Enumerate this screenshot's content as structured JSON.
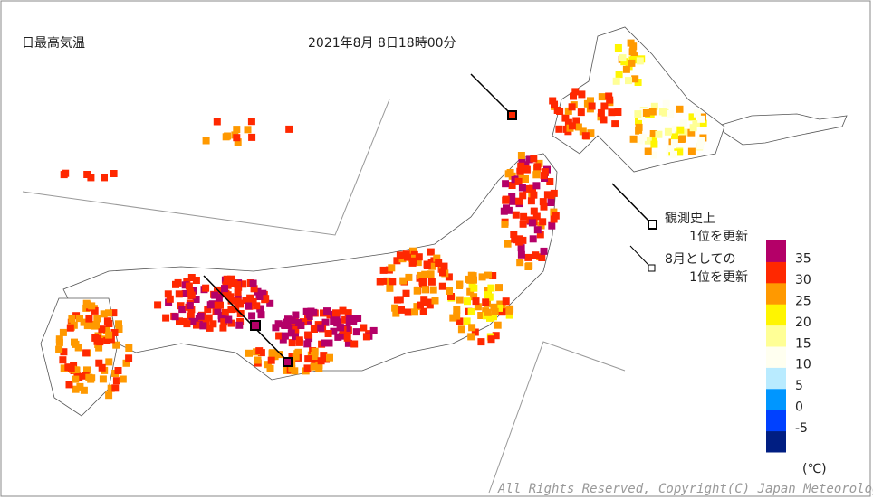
{
  "header": {
    "title": "日最高気温",
    "datetime": "2021年8月 8日18時00分"
  },
  "legend": {
    "record_all_time": [
      "観測史上",
      "1位を更新"
    ],
    "record_august": [
      "8月としての",
      "1位を更新"
    ]
  },
  "color_scale": {
    "colors": [
      "#001e82",
      "#0041ff",
      "#0096ff",
      "#b9ebff",
      "#fffff0",
      "#ffff96",
      "#fff500",
      "#ff9900",
      "#ff2800",
      "#b40068"
    ],
    "ticks": [
      -5,
      0,
      5,
      10,
      15,
      20,
      25,
      30,
      35
    ],
    "unit": "(℃)"
  },
  "footer": {
    "copyright": "All Rights Reserved, Copyright(C) Japan Meteorological Agency"
  }
}
